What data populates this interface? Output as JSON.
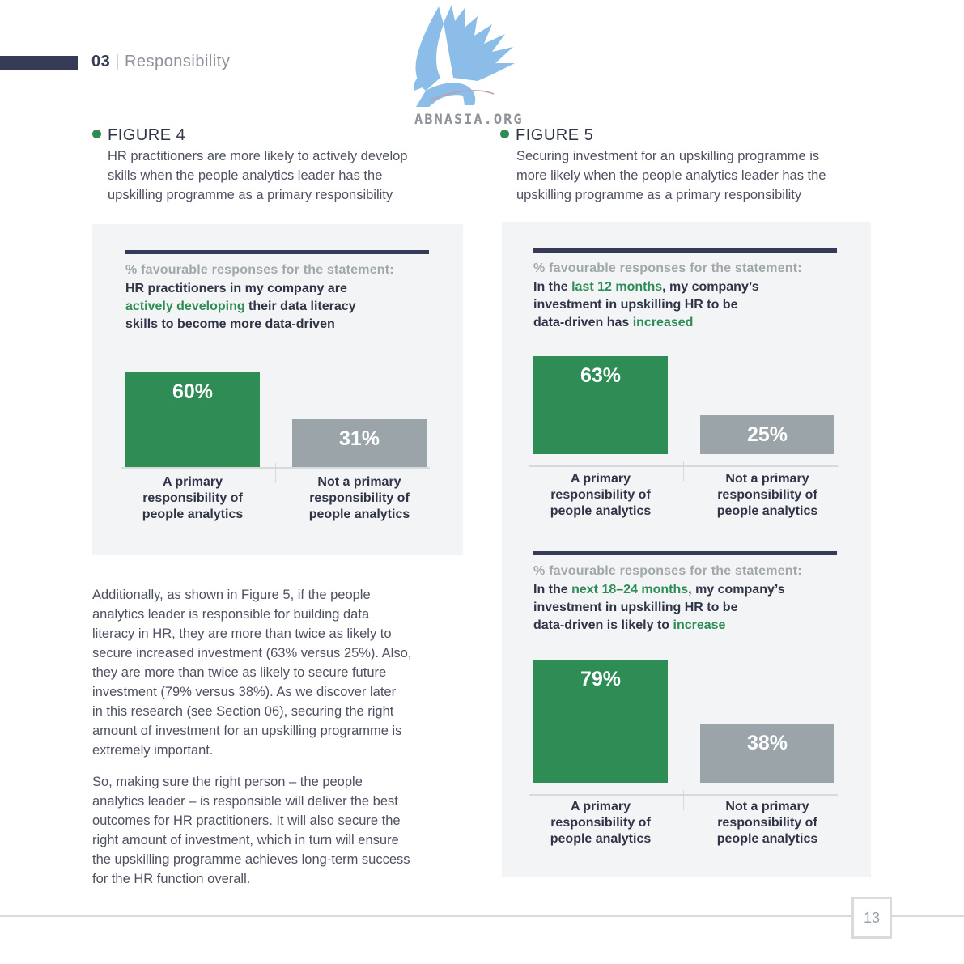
{
  "section": {
    "number": "03",
    "separator": "|",
    "name": "Responsibility"
  },
  "watermark": {
    "text": "ABNASIA.ORG"
  },
  "colors": {
    "accent_green": "#2e8d55",
    "bar_grey": "#9aa4a9",
    "navy": "#353a57",
    "panel_bg": "#f2f4f5"
  },
  "figure4": {
    "title": "FIGURE 4",
    "subtitle": [
      "HR practitioners are more likely to actively develop",
      "skills when the people analytics leader has the",
      "upskilling programme as a primary responsibility"
    ],
    "lead": "% favourable responses for the statement:",
    "statement": {
      "l1": "HR practitioners in my company are",
      "hl1": "actively developing",
      "l2_rest": " their data literacy",
      "l3": "skills to become more data-driven"
    }
  },
  "figure5": {
    "title": "FIGURE 5",
    "subtitle": [
      "Securing investment for an upskilling programme is",
      "more likely when the people analytics leader has the",
      "upskilling programme as a primary responsibility"
    ],
    "chart_a": {
      "lead": "% favourable responses for the statement:",
      "statement": {
        "pre1": "In the ",
        "hl1": "last 12 months",
        "post1": ", my company’s",
        "l2": "investment in upskilling HR to be",
        "pre3": "data-driven has ",
        "hl3": "increased"
      }
    },
    "chart_b": {
      "lead": "% favourable responses for the statement:",
      "statement": {
        "pre1": "In the ",
        "hl1": "next 18–24 months",
        "post1": ", my company’s",
        "l2": "investment in upskilling HR to be",
        "pre3": "data-driven is likely to ",
        "hl3": "increase"
      }
    }
  },
  "chart_data": [
    {
      "type": "bar",
      "id": "figure4",
      "categories": [
        "A primary responsibility of people analytics",
        "Not a primary responsibility of people analytics"
      ],
      "values": [
        60,
        31
      ],
      "value_labels": [
        "60%",
        "31%"
      ],
      "ylim": [
        0,
        100
      ]
    },
    {
      "type": "bar",
      "id": "figure5a",
      "categories": [
        "A primary responsibility of people analytics",
        "Not a primary responsibility of people analytics"
      ],
      "values": [
        63,
        25
      ],
      "value_labels": [
        "63%",
        "25%"
      ],
      "ylim": [
        0,
        100
      ]
    },
    {
      "type": "bar",
      "id": "figure5b",
      "categories": [
        "A primary responsibility of people analytics",
        "Not a primary responsibility of people analytics"
      ],
      "values": [
        79,
        38
      ],
      "value_labels": [
        "79%",
        "38%"
      ],
      "ylim": [
        0,
        100
      ]
    }
  ],
  "category_lines": {
    "primary": [
      "A primary",
      "responsibility of",
      "people analytics"
    ],
    "not_primary": [
      "Not a primary",
      "responsibility of",
      "people analytics"
    ]
  },
  "body": {
    "p1": [
      "Additionally, as shown in Figure 5, if the people",
      "analytics leader is responsible for building data",
      "literacy in HR, they are more than twice as likely to",
      "secure increased investment (63% versus 25%). Also,",
      "they are more than twice as likely to secure future",
      "investment (79% versus 38%). As we discover later",
      "in this research (see Section 06), securing the right",
      "amount of investment for an upskilling programme is",
      "extremely important."
    ],
    "p2": [
      "So, making sure the right person – the people",
      "analytics leader – is responsible will deliver the best",
      "outcomes for HR practitioners. It will also secure the",
      "right amount of investment, which in turn will ensure",
      "the upskilling programme achieves long-term success",
      "for the HR function overall."
    ]
  },
  "page_number": "13"
}
